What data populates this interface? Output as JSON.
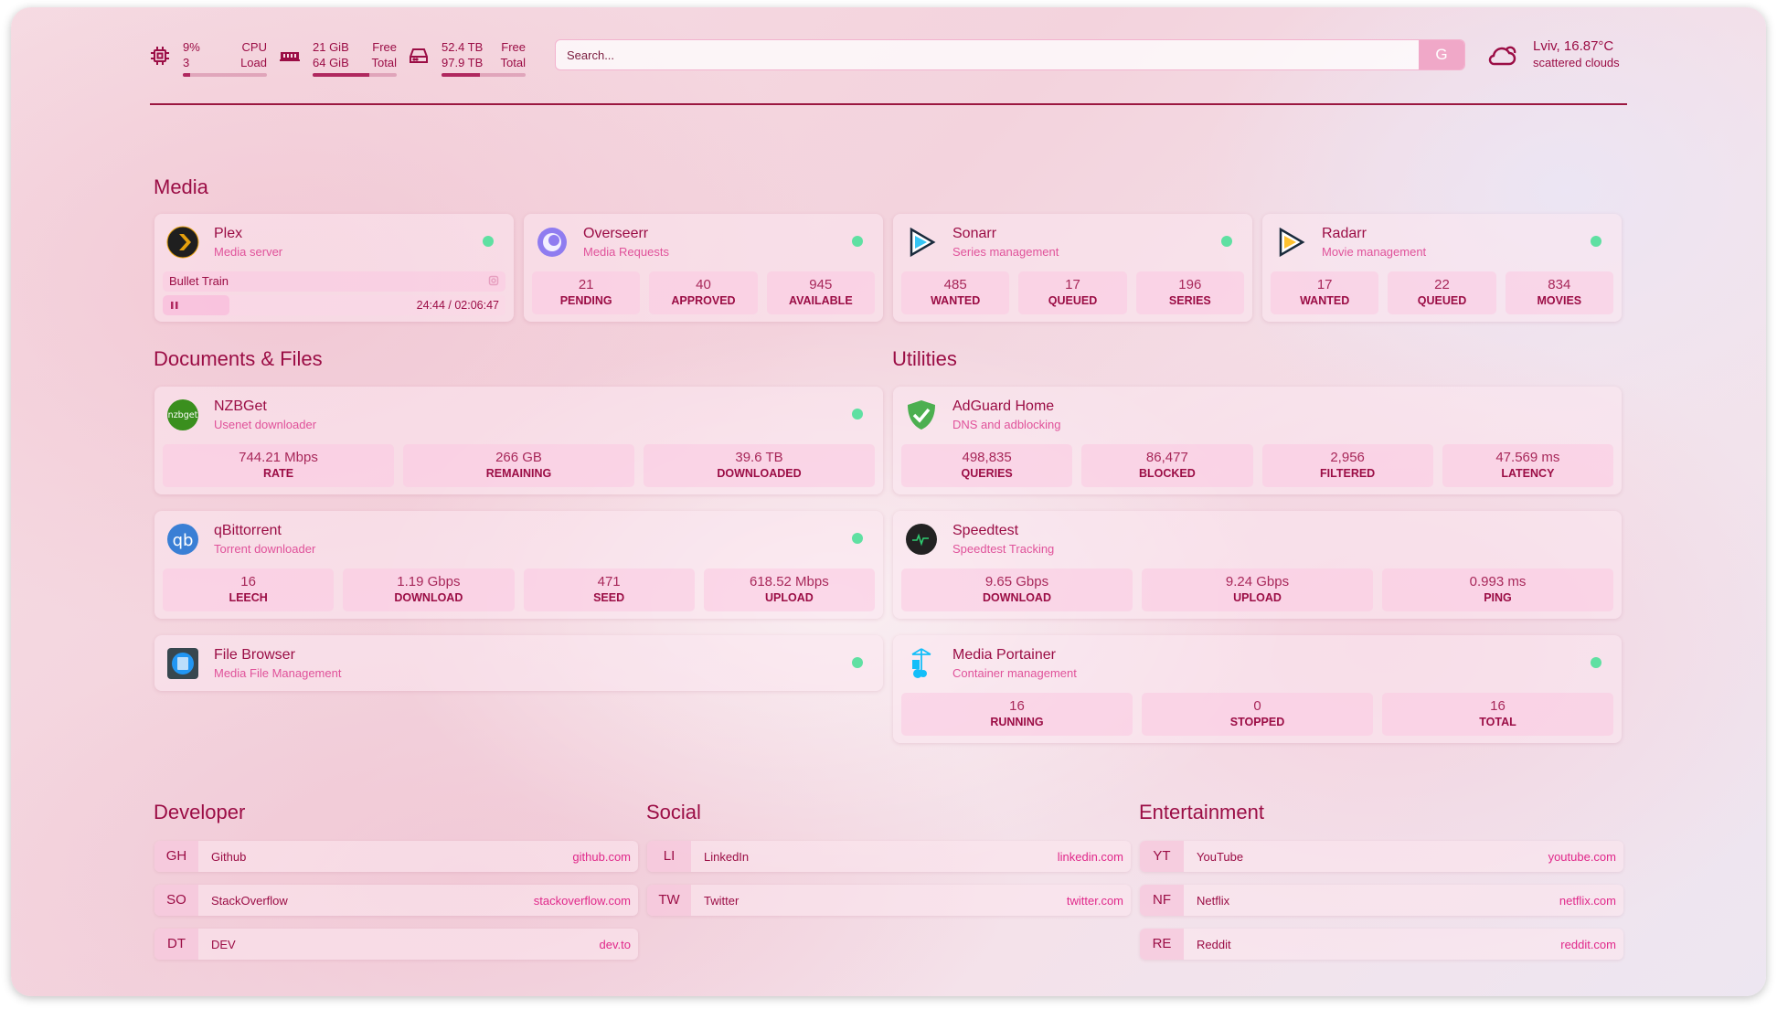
{
  "header": {
    "cpu": {
      "icon": "cpu-icon",
      "value": "9%",
      "sub": "3",
      "label": "CPU",
      "sublabel": "Load",
      "percent": 9
    },
    "memory": {
      "icon": "memory-icon",
      "value": "21 GiB",
      "sub": "64 GiB",
      "label": "Free",
      "sublabel": "Total",
      "percent": 67
    },
    "disk": {
      "icon": "disk-icon",
      "value": "52.4 TB",
      "sub": "97.9 TB",
      "label": "Free",
      "sublabel": "Total",
      "percent": 46
    },
    "search": {
      "placeholder": "Search...",
      "button": "G"
    },
    "weather": {
      "icon": "cloud-sun-icon",
      "location": "Lviv, 16.87°C",
      "condition": "scattered clouds"
    }
  },
  "colors": {
    "text": "#9b0d45",
    "subtitle": "#e0529a",
    "status_ok": "#5fe0a2",
    "accent": "#f0a8c8"
  },
  "sections": {
    "media": "Media",
    "documents": "Documents & Files",
    "utilities": "Utilities",
    "developer": "Developer",
    "social": "Social",
    "entertainment": "Entertainment"
  },
  "media": [
    {
      "name": "Plex",
      "desc": "Media server",
      "icon": "plex-icon",
      "status": "up",
      "now_playing": {
        "title": "Bullet Train",
        "time": "24:44 / 02:06:47",
        "progress": 0.195,
        "state": "paused"
      }
    },
    {
      "name": "Overseerr",
      "desc": "Media Requests",
      "icon": "overseerr-icon",
      "status": "up",
      "stats": [
        {
          "v": "21",
          "l": "PENDING"
        },
        {
          "v": "40",
          "l": "APPROVED"
        },
        {
          "v": "945",
          "l": "AVAILABLE"
        }
      ]
    },
    {
      "name": "Sonarr",
      "desc": "Series management",
      "icon": "sonarr-icon",
      "status": "up",
      "stats": [
        {
          "v": "485",
          "l": "WANTED"
        },
        {
          "v": "17",
          "l": "QUEUED"
        },
        {
          "v": "196",
          "l": "SERIES"
        }
      ]
    },
    {
      "name": "Radarr",
      "desc": "Movie management",
      "icon": "radarr-icon",
      "status": "up",
      "stats": [
        {
          "v": "17",
          "l": "WANTED"
        },
        {
          "v": "22",
          "l": "QUEUED"
        },
        {
          "v": "834",
          "l": "MOVIES"
        }
      ]
    }
  ],
  "documents": [
    {
      "name": "NZBGet",
      "desc": "Usenet downloader",
      "icon": "nzbget-icon",
      "status": "up",
      "stats": [
        {
          "v": "744.21 Mbps",
          "l": "RATE"
        },
        {
          "v": "266 GB",
          "l": "REMAINING"
        },
        {
          "v": "39.6 TB",
          "l": "DOWNLOADED"
        }
      ]
    },
    {
      "name": "qBittorrent",
      "desc": "Torrent downloader",
      "icon": "qbittorrent-icon",
      "status": "up",
      "stats": [
        {
          "v": "16",
          "l": "LEECH"
        },
        {
          "v": "1.19 Gbps",
          "l": "DOWNLOAD"
        },
        {
          "v": "471",
          "l": "SEED"
        },
        {
          "v": "618.52 Mbps",
          "l": "UPLOAD"
        }
      ]
    },
    {
      "name": "File Browser",
      "desc": "Media File Management",
      "icon": "filebrowser-icon",
      "status": "up"
    }
  ],
  "utilities": [
    {
      "name": "AdGuard Home",
      "desc": "DNS and adblocking",
      "icon": "adguard-icon",
      "stats": [
        {
          "v": "498,835",
          "l": "QUERIES"
        },
        {
          "v": "86,477",
          "l": "BLOCKED"
        },
        {
          "v": "2,956",
          "l": "FILTERED"
        },
        {
          "v": "47.569 ms",
          "l": "LATENCY"
        }
      ]
    },
    {
      "name": "Speedtest",
      "desc": "Speedtest Tracking",
      "icon": "speedtest-icon",
      "stats": [
        {
          "v": "9.65 Gbps",
          "l": "DOWNLOAD"
        },
        {
          "v": "9.24 Gbps",
          "l": "UPLOAD"
        },
        {
          "v": "0.993 ms",
          "l": "PING"
        }
      ]
    },
    {
      "name": "Media Portainer",
      "desc": "Container management",
      "icon": "portainer-icon",
      "status": "up",
      "stats": [
        {
          "v": "16",
          "l": "RUNNING"
        },
        {
          "v": "0",
          "l": "STOPPED"
        },
        {
          "v": "16",
          "l": "TOTAL"
        }
      ]
    }
  ],
  "bookmarks": {
    "developer": [
      {
        "abbr": "GH",
        "name": "Github",
        "url": "github.com"
      },
      {
        "abbr": "SO",
        "name": "StackOverflow",
        "url": "stackoverflow.com"
      },
      {
        "abbr": "DT",
        "name": "DEV",
        "url": "dev.to"
      }
    ],
    "social": [
      {
        "abbr": "LI",
        "name": "LinkedIn",
        "url": "linkedin.com"
      },
      {
        "abbr": "TW",
        "name": "Twitter",
        "url": "twitter.com"
      }
    ],
    "entertainment": [
      {
        "abbr": "YT",
        "name": "YouTube",
        "url": "youtube.com"
      },
      {
        "abbr": "NF",
        "name": "Netflix",
        "url": "netflix.com"
      },
      {
        "abbr": "RE",
        "name": "Reddit",
        "url": "reddit.com"
      }
    ]
  }
}
